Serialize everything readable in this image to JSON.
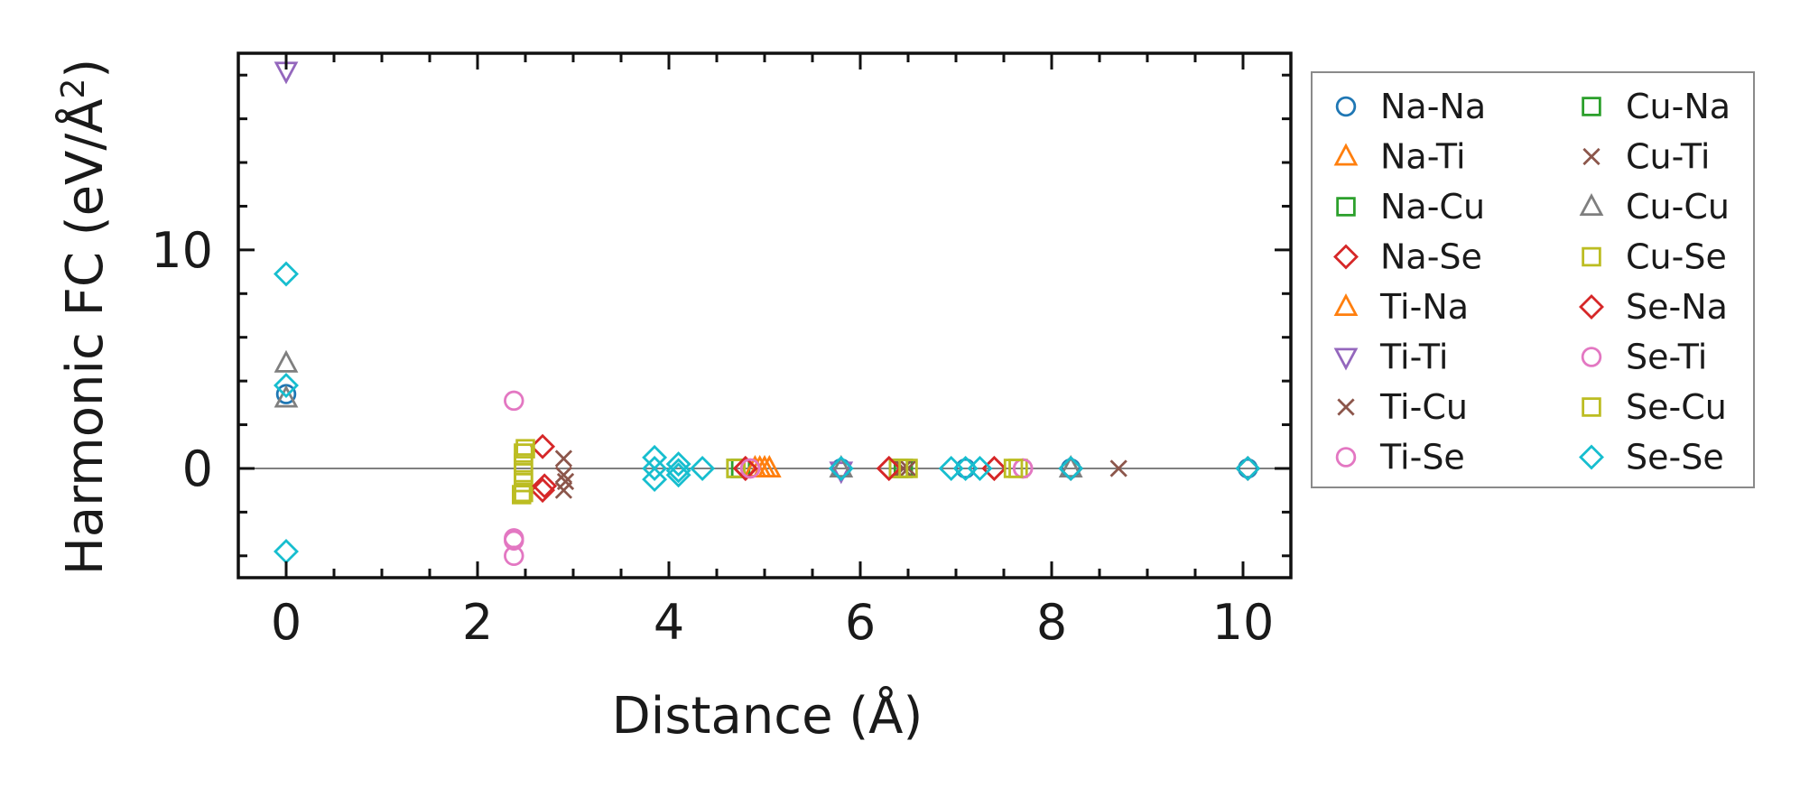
{
  "chart_data": {
    "type": "scatter",
    "xlabel": "Distance (Å)",
    "ylabel": "Harmonic FC (eV/Å²)",
    "ylabel_base": "Harmonic FC (eV/Å",
    "ylabel_sup": "2",
    "ylabel_close": ")",
    "xlim": [
      -0.5,
      10.5
    ],
    "ylim": [
      -5.0,
      19.0
    ],
    "xticks": [
      0,
      2,
      4,
      6,
      8,
      10
    ],
    "xtick_labels": [
      "0",
      "2",
      "4",
      "6",
      "8",
      "10"
    ],
    "yticks": [
      0,
      10
    ],
    "ytick_labels": [
      "0",
      "10"
    ],
    "x_minor_step": 0.5,
    "y_minor_step": 2,
    "zero_line": true,
    "legend_position": "outside-right",
    "series": [
      {
        "name": "Na-Na",
        "marker": "circle",
        "color": "#1f77b4",
        "x": [
          0,
          5.8,
          7.1,
          8.2,
          10.05
        ],
        "y": [
          3.4,
          0,
          0,
          0,
          0
        ]
      },
      {
        "name": "Na-Ti",
        "marker": "triangle-up",
        "color": "#ff7f0e",
        "x": [
          4.95,
          5.05
        ],
        "y": [
          0,
          0
        ]
      },
      {
        "name": "Na-Cu",
        "marker": "square",
        "color": "#2ca02c",
        "x": [
          4.75,
          6.45
        ],
        "y": [
          0,
          0
        ]
      },
      {
        "name": "Na-Se",
        "marker": "diamond",
        "color": "#d62728",
        "x": [
          2.68,
          2.68,
          4.8,
          6.3,
          7.4,
          8.2,
          10.05
        ],
        "y": [
          1.0,
          -1.0,
          0,
          0,
          0,
          0,
          0
        ]
      },
      {
        "name": "Ti-Na",
        "marker": "triangle-up",
        "color": "#ff7f0e",
        "x": [
          4.9,
          5.0
        ],
        "y": [
          0,
          0
        ]
      },
      {
        "name": "Ti-Ti",
        "marker": "triangle-down",
        "color": "#9467bd",
        "x": [
          0,
          5.8
        ],
        "y": [
          18.2,
          -0.1
        ]
      },
      {
        "name": "Ti-Cu",
        "marker": "x",
        "color": "#8c564b",
        "x": [
          2.9,
          2.9,
          2.9,
          6.45,
          8.7
        ],
        "y": [
          0.45,
          -0.3,
          -1.0,
          0,
          0
        ]
      },
      {
        "name": "Ti-Se",
        "marker": "circle",
        "color": "#e377c2",
        "x": [
          2.38,
          2.38,
          2.38,
          4.85,
          7.7
        ],
        "y": [
          3.1,
          -3.2,
          -4.0,
          0,
          0
        ]
      },
      {
        "name": "Cu-Na",
        "marker": "square",
        "color": "#2ca02c",
        "x": [
          4.7,
          6.4
        ],
        "y": [
          0,
          0
        ]
      },
      {
        "name": "Cu-Ti",
        "marker": "x",
        "color": "#8c564b",
        "x": [
          2.92,
          6.5
        ],
        "y": [
          -0.6,
          0
        ]
      },
      {
        "name": "Cu-Cu",
        "marker": "triangle-up",
        "color": "#7f7f7f",
        "x": [
          0,
          0,
          5.8,
          8.2
        ],
        "y": [
          4.8,
          3.2,
          0,
          0
        ]
      },
      {
        "name": "Cu-Se",
        "marker": "square",
        "color": "#bcbd22",
        "x": [
          2.48,
          2.48,
          2.48,
          2.48,
          2.48,
          4.7,
          6.4,
          7.65
        ],
        "y": [
          0.7,
          0.25,
          -0.2,
          -0.65,
          -1.1,
          0,
          0,
          0
        ]
      },
      {
        "name": "Se-Na",
        "marker": "diamond",
        "color": "#d62728",
        "x": [
          2.7,
          4.8,
          6.3,
          7.4
        ],
        "y": [
          -0.8,
          0,
          0,
          0
        ]
      },
      {
        "name": "Se-Ti",
        "marker": "circle",
        "color": "#e377c2",
        "x": [
          2.38,
          4.85,
          7.7
        ],
        "y": [
          -3.3,
          0,
          0
        ]
      },
      {
        "name": "Se-Cu",
        "marker": "square",
        "color": "#bcbd22",
        "x": [
          2.5,
          2.46,
          6.5,
          7.6
        ],
        "y": [
          0.9,
          -1.2,
          0,
          0
        ]
      },
      {
        "name": "Se-Se",
        "marker": "diamond",
        "color": "#17becf",
        "x": [
          0,
          0,
          0,
          3.85,
          3.85,
          3.85,
          4.1,
          4.1,
          4.1,
          4.35,
          5.8,
          6.95,
          7.1,
          7.25,
          8.2,
          10.05
        ],
        "y": [
          8.9,
          3.8,
          -3.8,
          0.5,
          0,
          -0.5,
          0.2,
          -0.1,
          -0.3,
          0,
          0,
          0,
          0,
          0,
          0,
          0
        ]
      }
    ]
  }
}
